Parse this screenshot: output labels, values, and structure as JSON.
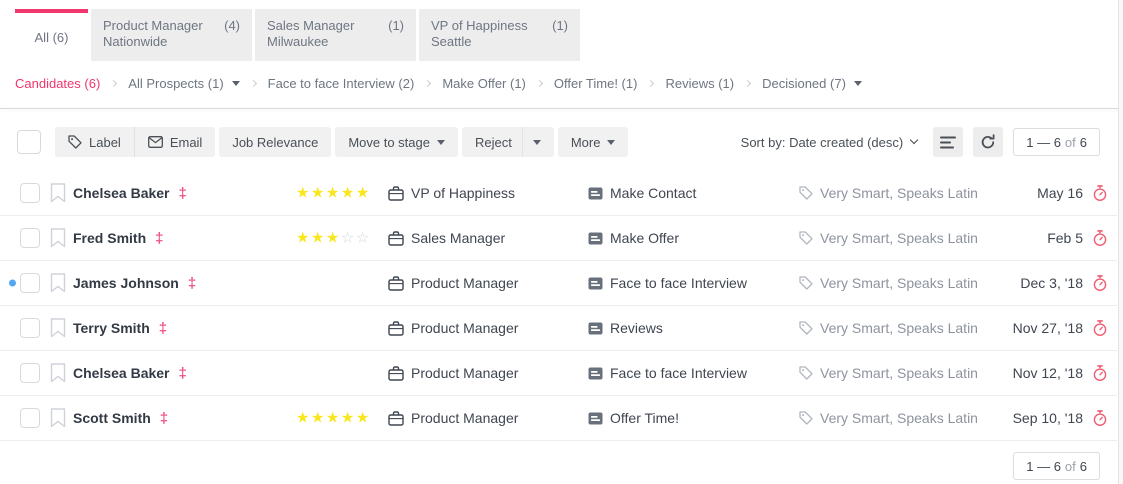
{
  "colors": {
    "accent_pink": "#f1356d",
    "dagger_pink": "#ee5586",
    "timer_pink": "#ef5e72",
    "star_yellow": "#f8e71c",
    "unread_blue": "#54a8f2"
  },
  "tabs": [
    {
      "label": "All (6)",
      "subtitle": "",
      "count": "",
      "active": true
    },
    {
      "label": "Product Manager",
      "subtitle": "Nationwide",
      "count": "(4)",
      "active": false
    },
    {
      "label": "Sales Manager",
      "subtitle": "Milwaukee",
      "count": "(1)",
      "active": false
    },
    {
      "label": "VP of Happiness",
      "subtitle": "Seattle",
      "count": "(1)",
      "active": false
    }
  ],
  "breadcrumb": [
    {
      "label": "Candidates (6)",
      "accent": true,
      "dropdown": false
    },
    {
      "label": "All Prospects (1)",
      "accent": false,
      "dropdown": true
    },
    {
      "label": "Face to face Interview (2)",
      "accent": false,
      "dropdown": false
    },
    {
      "label": "Make Offer (1)",
      "accent": false,
      "dropdown": false
    },
    {
      "label": "Offer Time! (1)",
      "accent": false,
      "dropdown": false
    },
    {
      "label": "Reviews (1)",
      "accent": false,
      "dropdown": false
    },
    {
      "label": "Decisioned (7)",
      "accent": false,
      "dropdown": true
    }
  ],
  "toolbar": {
    "label": "Label",
    "email": "Email",
    "job_relevance": "Job Relevance",
    "move_to_stage": "Move to stage",
    "reject": "Reject",
    "more": "More",
    "sort_by": "Sort by: Date created (desc)"
  },
  "pagination": {
    "range": "1 — 6",
    "of": "of",
    "total": "6"
  },
  "candidates": [
    {
      "name": "Chelsea Baker",
      "rating": 5,
      "job": "VP of Happiness",
      "stage": "Make Contact",
      "labels": [
        "Very Smart",
        "Speaks Latin"
      ],
      "date": "May 16",
      "unread": false
    },
    {
      "name": "Fred Smith",
      "rating": 3,
      "job": "Sales Manager",
      "stage": "Make Offer",
      "labels": [
        "Very Smart",
        "Speaks Latin"
      ],
      "date": "Feb 5",
      "unread": false
    },
    {
      "name": "James Johnson",
      "rating": null,
      "job": "Product Manager",
      "stage": "Face to face Interview",
      "labels": [
        "Very Smart",
        "Speaks Latin"
      ],
      "date": "Dec 3, '18",
      "unread": true
    },
    {
      "name": "Terry Smith",
      "rating": null,
      "job": "Product Manager",
      "stage": "Reviews",
      "labels": [
        "Very Smart",
        "Speaks Latin"
      ],
      "date": "Nov 27, '18",
      "unread": false
    },
    {
      "name": "Chelsea Baker",
      "rating": null,
      "job": "Product Manager",
      "stage": "Face to face Interview",
      "labels": [
        "Very Smart",
        "Speaks Latin"
      ],
      "date": "Nov 12, '18",
      "unread": false
    },
    {
      "name": "Scott Smith",
      "rating": 5,
      "job": "Product Manager",
      "stage": "Offer Time!",
      "labels": [
        "Very Smart",
        "Speaks Latin"
      ],
      "date": "Sep 10, '18",
      "unread": false
    }
  ]
}
